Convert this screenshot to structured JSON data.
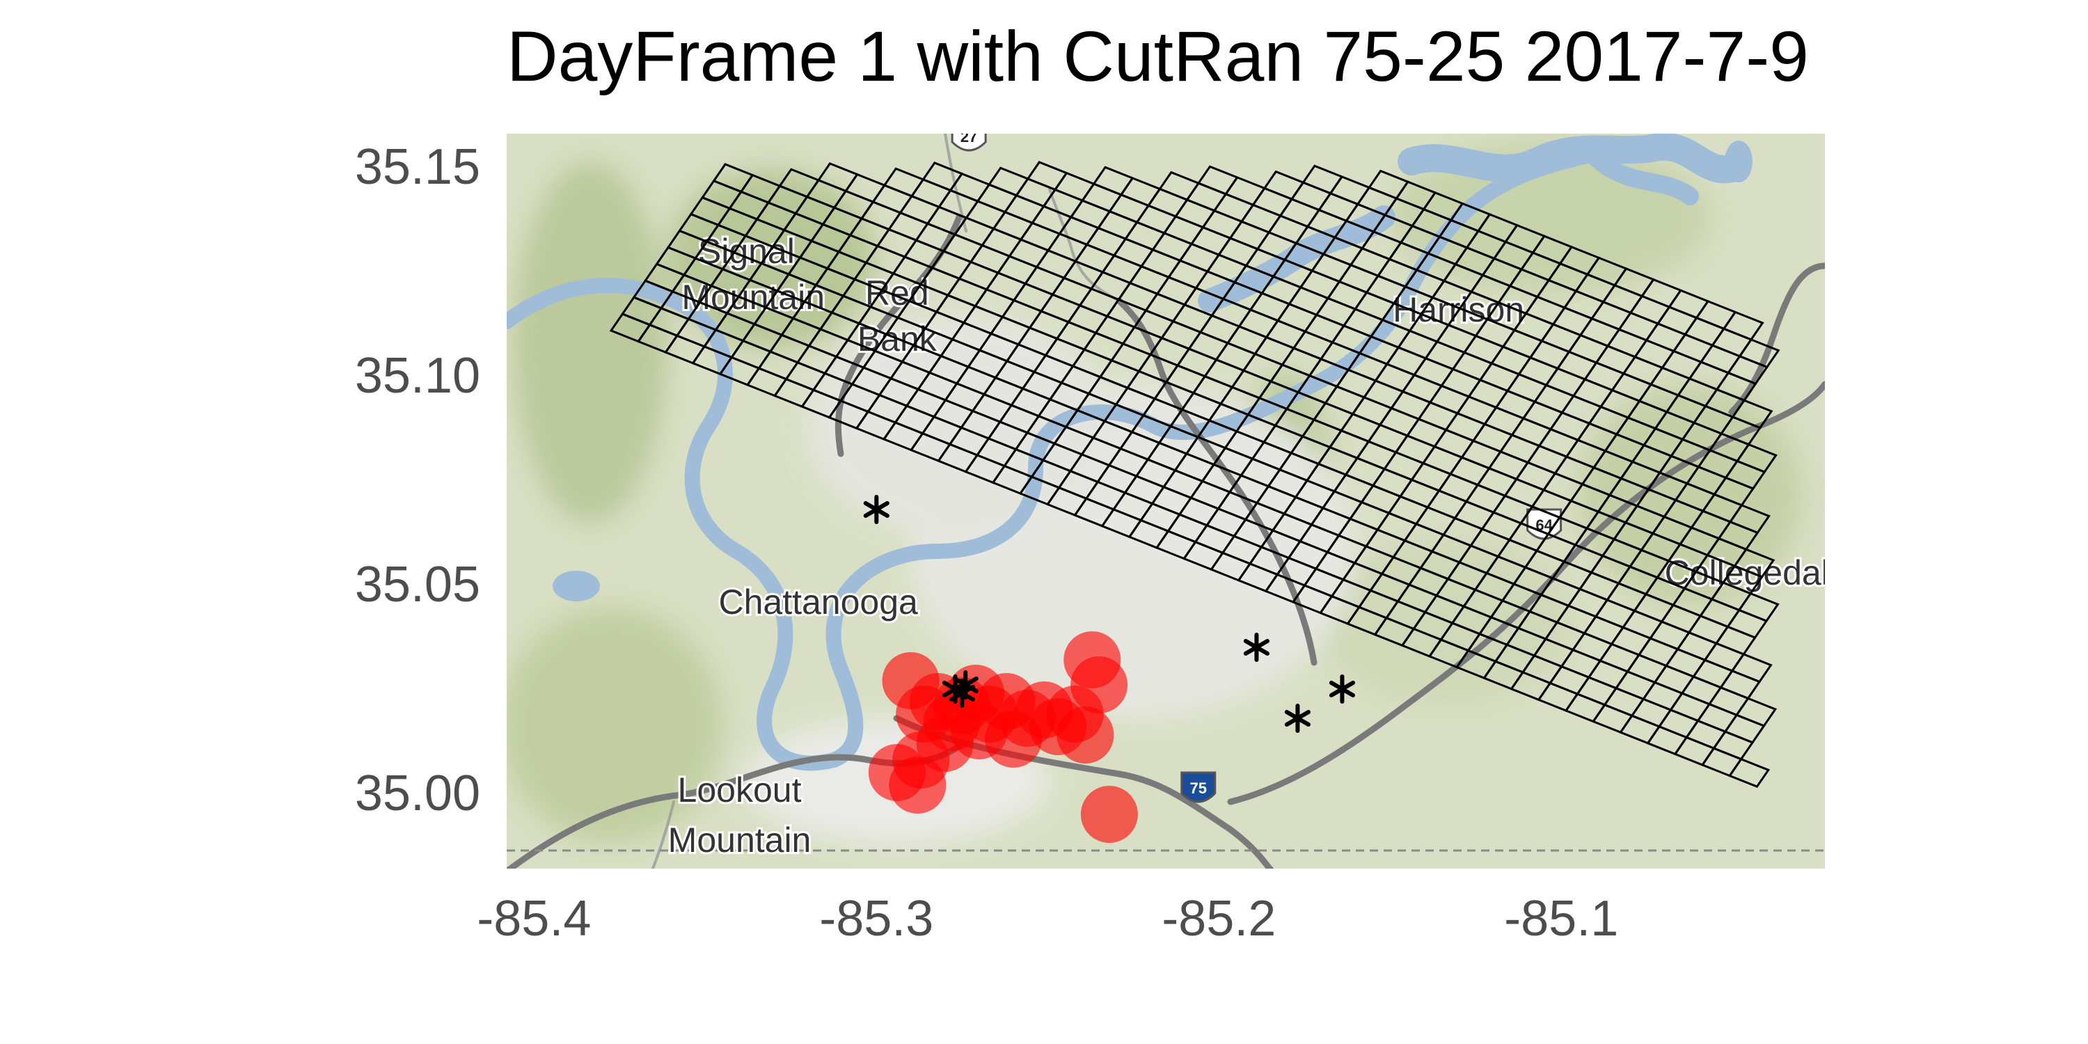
{
  "title": "DayFrame 1 with CutRan 75-25 2017-7-9",
  "x_ticks": [
    "-85.4",
    "-85.3",
    "-85.2",
    "-85.1"
  ],
  "y_ticks": [
    "35.15",
    "35.10",
    "35.05",
    "35.00"
  ],
  "x_tick_values": [
    -85.4,
    -85.3,
    -85.2,
    -85.1
  ],
  "y_tick_values": [
    35.15,
    35.1,
    35.05,
    35.0
  ],
  "map": {
    "lon_range": [
      -85.408,
      -85.023
    ],
    "lat_range": [
      34.982,
      35.158
    ],
    "place_labels": [
      {
        "text": "Signal",
        "lon": -85.338,
        "lat": 35.127
      },
      {
        "text": "Mountain",
        "lon": -85.336,
        "lat": 35.116
      },
      {
        "text": "Red",
        "lon": -85.294,
        "lat": 35.117
      },
      {
        "text": "Bank",
        "lon": -85.294,
        "lat": 35.106
      },
      {
        "text": "Harrison",
        "lon": -85.13,
        "lat": 35.113
      },
      {
        "text": "Chattanooga",
        "lon": -85.317,
        "lat": 35.043
      },
      {
        "text": "Collegedale",
        "lon": -85.043,
        "lat": 35.05
      },
      {
        "text": "Lookout",
        "lon": -85.34,
        "lat": 34.998
      },
      {
        "text": "Mountain",
        "lon": -85.34,
        "lat": 34.986
      }
    ],
    "shields": [
      {
        "text": "27",
        "lon": -85.273,
        "lat": 35.157,
        "color": "#ffffff"
      },
      {
        "text": "75",
        "lon": -85.206,
        "lat": 35.001,
        "color": "#1a4d99"
      },
      {
        "text": "64",
        "lon": -85.105,
        "lat": 35.064,
        "color": "#ffffff"
      }
    ]
  },
  "grid": {
    "stroke_color": "#000000",
    "rows": 22,
    "cols": 50
  },
  "chart_data": {
    "type": "scatter",
    "title": "DayFrame 1 with CutRan 75-25 2017-7-9",
    "xlabel": "",
    "ylabel": "",
    "xlim": [
      -85.408,
      -85.023
    ],
    "ylim": [
      34.982,
      35.158
    ],
    "series": [
      {
        "marker": "circle",
        "color": "#ff0000",
        "points": [
          [
            -85.29,
            35.027
          ],
          [
            -85.286,
            35.019
          ],
          [
            -85.282,
            35.022
          ],
          [
            -85.278,
            35.017
          ],
          [
            -85.275,
            35.021
          ],
          [
            -85.271,
            35.024
          ],
          [
            -85.267,
            35.019
          ],
          [
            -85.262,
            35.022
          ],
          [
            -85.256,
            35.018
          ],
          [
            -85.251,
            35.02
          ],
          [
            -85.247,
            35.016
          ],
          [
            -85.242,
            35.019
          ],
          [
            -85.239,
            35.014
          ],
          [
            -85.235,
            35.026
          ],
          [
            -85.237,
            35.032
          ],
          [
            -85.28,
            35.012
          ],
          [
            -85.287,
            35.008
          ],
          [
            -85.294,
            35.005
          ],
          [
            -85.288,
            35.002
          ],
          [
            -85.232,
            34.995
          ],
          [
            -85.27,
            35.015
          ],
          [
            -85.26,
            35.013
          ]
        ]
      },
      {
        "marker": "asterisk",
        "color": "#000000",
        "points": [
          [
            -85.3,
            35.068
          ],
          [
            -85.277,
            35.025
          ],
          [
            -85.274,
            35.026
          ],
          [
            -85.275,
            35.024
          ],
          [
            -85.189,
            35.035
          ],
          [
            -85.164,
            35.025
          ],
          [
            -85.177,
            35.018
          ]
        ]
      }
    ]
  }
}
